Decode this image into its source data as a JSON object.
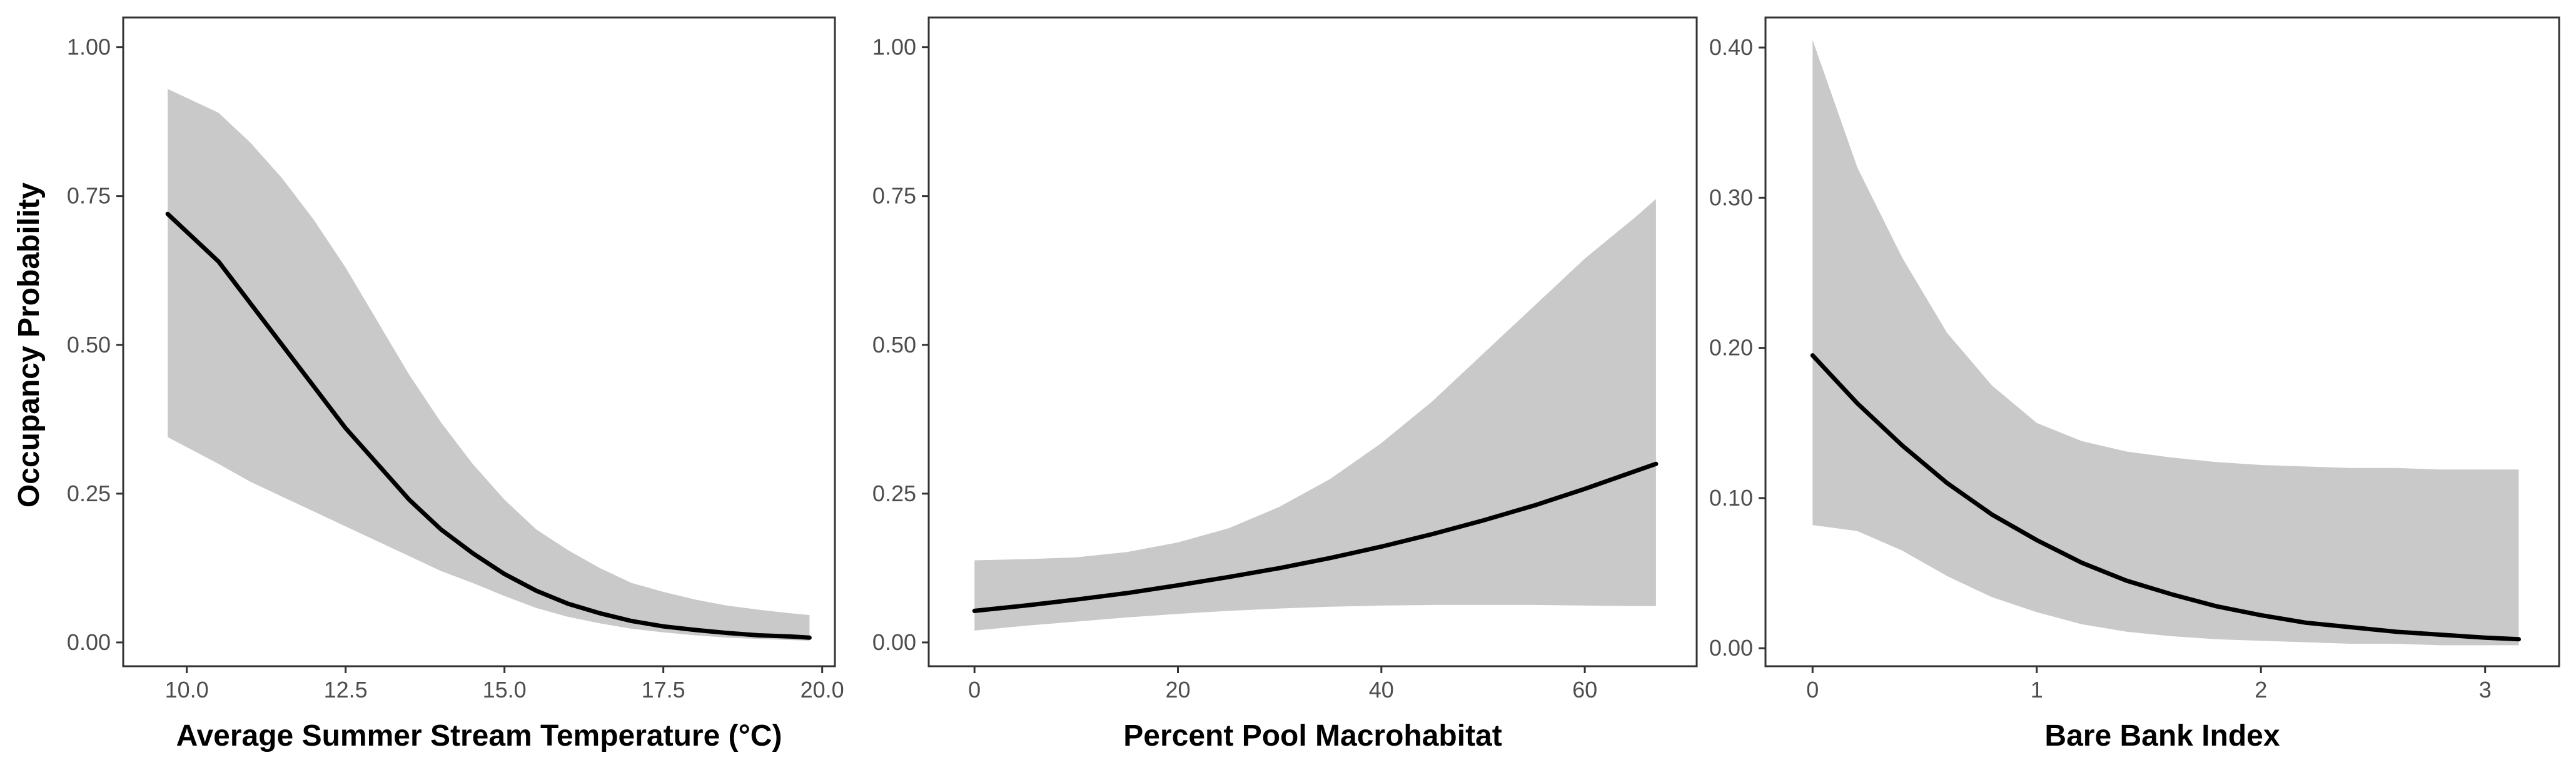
{
  "figure": {
    "y_axis_title": "Occupancy Probability"
  },
  "colors": {
    "ribbon": "#c9c9c9",
    "line": "#000000",
    "border": "#333333",
    "tick_text": "#4d4d4d"
  },
  "chart_data": [
    {
      "type": "line",
      "panel": "temperature",
      "title": "",
      "xlabel": "Average Summer Stream Temperature (°C)",
      "ylabel": "Occupancy Probability",
      "xlim": [
        9.0,
        20.2
      ],
      "ylim": [
        -0.04,
        1.05
      ],
      "xticks": [
        10.0,
        12.5,
        15.0,
        17.5,
        20.0
      ],
      "xtick_labels": [
        "10.0",
        "12.5",
        "15.0",
        "17.5",
        "20.0"
      ],
      "yticks": [
        0.0,
        0.25,
        0.5,
        0.75,
        1.0
      ],
      "ytick_labels": [
        "0.00",
        "0.25",
        "0.50",
        "0.75",
        "1.00"
      ],
      "grid": false,
      "series": [
        {
          "kind": "ribbon_with_line",
          "x": [
            9.7,
            10.5,
            11.0,
            11.5,
            12.0,
            12.5,
            13.0,
            13.5,
            14.0,
            14.5,
            15.0,
            15.5,
            16.0,
            16.5,
            17.0,
            17.5,
            18.0,
            18.5,
            19.0,
            19.5,
            19.8
          ],
          "y": [
            0.72,
            0.64,
            0.57,
            0.5,
            0.43,
            0.36,
            0.3,
            0.24,
            0.19,
            0.15,
            0.115,
            0.087,
            0.065,
            0.049,
            0.036,
            0.027,
            0.021,
            0.016,
            0.012,
            0.01,
            0.008
          ],
          "lower": [
            0.345,
            0.3,
            0.27,
            0.245,
            0.22,
            0.195,
            0.17,
            0.145,
            0.12,
            0.1,
            0.078,
            0.058,
            0.043,
            0.032,
            0.023,
            0.017,
            0.012,
            0.008,
            0.006,
            0.004,
            0.003
          ],
          "upper": [
            0.93,
            0.89,
            0.84,
            0.78,
            0.71,
            0.63,
            0.54,
            0.45,
            0.37,
            0.3,
            0.24,
            0.19,
            0.155,
            0.125,
            0.1,
            0.085,
            0.072,
            0.062,
            0.055,
            0.049,
            0.046
          ]
        }
      ]
    },
    {
      "type": "line",
      "panel": "pool",
      "title": "",
      "xlabel": "Percent Pool Macrohabitat",
      "ylabel": "",
      "xlim": [
        -4.5,
        71
      ],
      "ylim": [
        -0.04,
        1.05
      ],
      "xticks": [
        0,
        20,
        40,
        60
      ],
      "xtick_labels": [
        "0",
        "20",
        "40",
        "60"
      ],
      "yticks": [
        0.0,
        0.25,
        0.5,
        0.75,
        1.0
      ],
      "ytick_labels": [
        "0.00",
        "0.25",
        "0.50",
        "0.75",
        "1.00"
      ],
      "grid": false,
      "series": [
        {
          "kind": "ribbon_with_line",
          "x": [
            0,
            5,
            10,
            15,
            20,
            25,
            30,
            35,
            40,
            45,
            50,
            55,
            60,
            65,
            67
          ],
          "y": [
            0.053,
            0.062,
            0.072,
            0.083,
            0.096,
            0.11,
            0.125,
            0.142,
            0.161,
            0.182,
            0.205,
            0.23,
            0.258,
            0.288,
            0.3
          ],
          "lower": [
            0.02,
            0.028,
            0.035,
            0.042,
            0.048,
            0.053,
            0.057,
            0.06,
            0.062,
            0.063,
            0.063,
            0.063,
            0.062,
            0.061,
            0.061
          ],
          "upper": [
            0.138,
            0.14,
            0.143,
            0.152,
            0.168,
            0.192,
            0.228,
            0.275,
            0.335,
            0.405,
            0.485,
            0.565,
            0.645,
            0.715,
            0.745
          ]
        }
      ]
    },
    {
      "type": "line",
      "panel": "bare_bank",
      "title": "",
      "xlabel": "Bare Bank Index",
      "ylabel": "",
      "xlim": [
        -0.21,
        3.33
      ],
      "ylim": [
        -0.012,
        0.42
      ],
      "xticks": [
        0,
        1,
        2,
        3
      ],
      "xtick_labels": [
        "0",
        "1",
        "2",
        "3"
      ],
      "yticks": [
        0.0,
        0.1,
        0.2,
        0.3,
        0.4
      ],
      "ytick_labels": [
        "0.00",
        "0.10",
        "0.20",
        "0.30",
        "0.40"
      ],
      "grid": false,
      "series": [
        {
          "kind": "ribbon_with_line",
          "x": [
            0.0,
            0.2,
            0.4,
            0.6,
            0.8,
            1.0,
            1.2,
            1.4,
            1.6,
            1.8,
            2.0,
            2.2,
            2.4,
            2.6,
            2.8,
            3.0,
            3.15
          ],
          "y": [
            0.195,
            0.163,
            0.135,
            0.11,
            0.089,
            0.072,
            0.057,
            0.045,
            0.036,
            0.028,
            0.022,
            0.017,
            0.014,
            0.011,
            0.009,
            0.007,
            0.006
          ],
          "lower": [
            0.082,
            0.078,
            0.065,
            0.048,
            0.034,
            0.024,
            0.016,
            0.011,
            0.008,
            0.006,
            0.005,
            0.004,
            0.003,
            0.003,
            0.002,
            0.002,
            0.002
          ],
          "upper": [
            0.405,
            0.32,
            0.26,
            0.21,
            0.175,
            0.15,
            0.138,
            0.131,
            0.127,
            0.124,
            0.122,
            0.121,
            0.12,
            0.12,
            0.119,
            0.119,
            0.119
          ]
        }
      ]
    }
  ]
}
